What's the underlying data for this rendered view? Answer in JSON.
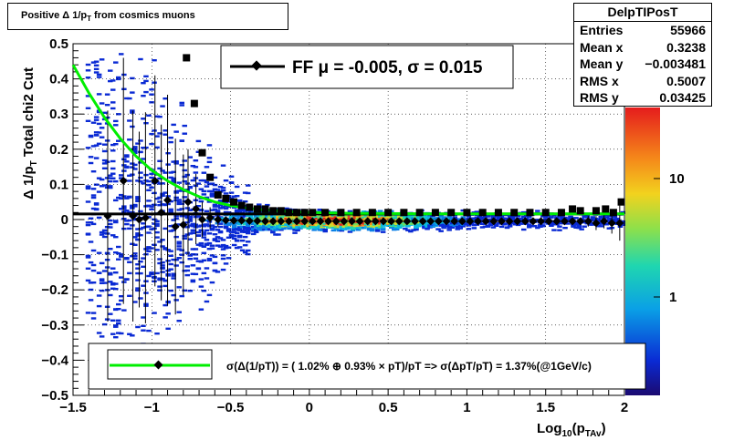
{
  "title": {
    "main": "Positive Δ 1/p",
    "sub": "T",
    "rest": " from cosmics muons"
  },
  "stats": {
    "name": "DelpTIPosT",
    "rows": [
      {
        "label": "Entries",
        "value": "55966"
      },
      {
        "label": "Mean x",
        "value": "0.3238"
      },
      {
        "label": "Mean y",
        "value": "−0.003481"
      },
      {
        "label": "RMS x",
        "value": "0.5007"
      },
      {
        "label": "RMS y",
        "value": "0.03425"
      }
    ]
  },
  "fit_legend": "FF μ = -0.005, σ =   0.015",
  "resolution_legend": "σ(Δ(1/pT)) = ( 1.02% ⊕  0.93% × pT)/pT => σ(ΔpT/pT) =  1.37%(@1GeV/c)",
  "axes": {
    "xlabel_main": "Log",
    "xlabel_sub1": "10",
    "xlabel_mid": "(p",
    "xlabel_sub2": "TAv",
    "xlabel_end": ")",
    "ylabel_main": "Δ 1/p",
    "ylabel_sub": "T",
    "ylabel_rest": "  Total chi2 Cut",
    "x_ticks": [
      "−1.5",
      "−1",
      "−0.5",
      "0",
      "0.5",
      "1",
      "1.5",
      "2"
    ],
    "y_ticks": [
      "0.5",
      "0.4",
      "0.3",
      "0.2",
      "0.1",
      "0",
      "−0.1",
      "−0.2",
      "−0.3",
      "−0.4",
      "−0.5"
    ],
    "z_ticks": [
      "10",
      "1"
    ]
  },
  "colors": {
    "fit_curve": "#00ee00",
    "markers": "#000000"
  },
  "chart_data": {
    "type": "scatter",
    "xlim": [
      -1.5,
      2.0
    ],
    "ylim": [
      -0.5,
      0.5
    ],
    "grid": true,
    "log_z": true,
    "series": [
      {
        "marker": "diamond",
        "x": [
          -1.28,
          -1.18,
          -1.12,
          -1.08,
          -1.04,
          -0.98,
          -0.94,
          -0.9,
          -0.85,
          -0.8,
          -0.77,
          -0.72,
          -0.68,
          -0.63,
          -0.58,
          -0.53,
          -0.48,
          -0.43,
          -0.38,
          -0.33,
          -0.28,
          -0.23,
          -0.18,
          -0.13,
          -0.08,
          -0.03,
          0.02,
          0.07,
          0.12,
          0.17,
          0.22,
          0.27,
          0.32,
          0.37,
          0.42,
          0.47,
          0.52,
          0.57,
          0.62,
          0.67,
          0.72,
          0.77,
          0.82,
          0.87,
          0.92,
          0.97,
          1.02,
          1.07,
          1.12,
          1.17,
          1.22,
          1.27,
          1.32,
          1.37,
          1.42,
          1.47,
          1.52,
          1.57,
          1.62,
          1.67,
          1.72,
          1.77,
          1.82,
          1.87,
          1.92,
          1.97
        ],
        "y": [
          0.01,
          0.11,
          0.01,
          0.0,
          0.005,
          0.11,
          0.02,
          0.055,
          -0.02,
          -0.015,
          0.05,
          0.03,
          0.0,
          0.005,
          0.0,
          -0.002,
          -0.003,
          -0.003,
          -0.004,
          -0.004,
          -0.005,
          -0.005,
          -0.005,
          -0.005,
          -0.005,
          -0.005,
          -0.005,
          -0.005,
          -0.005,
          -0.005,
          -0.005,
          -0.005,
          -0.005,
          -0.005,
          -0.005,
          -0.005,
          -0.005,
          -0.005,
          -0.005,
          -0.005,
          -0.005,
          -0.005,
          -0.005,
          -0.005,
          -0.005,
          -0.005,
          -0.005,
          -0.005,
          -0.005,
          -0.005,
          -0.005,
          -0.005,
          -0.005,
          -0.005,
          -0.005,
          -0.005,
          -0.005,
          -0.005,
          -0.005,
          -0.005,
          -0.005,
          -0.005,
          -0.01,
          -0.005,
          -0.01,
          -0.01
        ],
        "yerr": [
          0.3,
          0.35,
          0.3,
          0.25,
          0.3,
          0.3,
          0.25,
          0.3,
          0.25,
          0.2,
          0.15,
          0.1,
          0.05,
          0.03,
          0.02,
          0.01,
          0.01,
          0.01,
          0.005,
          0.005,
          0.005,
          0.005,
          0.005,
          0.005,
          0.005,
          0.005,
          0.005,
          0.005,
          0.005,
          0.005,
          0.005,
          0.005,
          0.005,
          0.005,
          0.005,
          0.005,
          0.005,
          0.005,
          0.005,
          0.005,
          0.005,
          0.005,
          0.005,
          0.005,
          0.005,
          0.005,
          0.005,
          0.005,
          0.005,
          0.005,
          0.005,
          0.005,
          0.005,
          0.005,
          0.005,
          0.01,
          0.01,
          0.01,
          0.01,
          0.01,
          0.01,
          0.015,
          0.02,
          0.02,
          0.03,
          0.05
        ]
      },
      {
        "marker": "square",
        "x": [
          -0.78,
          -0.73,
          -0.68,
          -0.63,
          -0.58,
          -0.53,
          -0.48,
          -0.43,
          -0.38,
          -0.33,
          -0.28,
          -0.23,
          -0.18,
          -0.13,
          -0.08,
          -0.03,
          0.02,
          0.1,
          0.2,
          0.3,
          0.4,
          0.5,
          0.6,
          0.7,
          0.8,
          0.9,
          1.0,
          1.1,
          1.2,
          1.3,
          1.4,
          1.5,
          1.6,
          1.67,
          1.72,
          1.82,
          1.88,
          1.93,
          1.98
        ],
        "y": [
          0.46,
          0.33,
          0.19,
          0.12,
          0.07,
          0.06,
          0.05,
          0.04,
          0.035,
          0.03,
          0.03,
          0.025,
          0.025,
          0.02,
          0.02,
          0.02,
          0.02,
          0.02,
          0.02,
          0.02,
          0.02,
          0.02,
          0.02,
          0.02,
          0.02,
          0.02,
          0.02,
          0.02,
          0.02,
          0.02,
          0.02,
          0.02,
          0.02,
          0.03,
          0.025,
          0.025,
          0.03,
          0.02,
          0.05
        ]
      },
      {
        "name": "FF",
        "type": "line",
        "x": [
          -1.5,
          -1.4,
          -1.3,
          -1.2,
          -1.1,
          -1.0,
          -0.9,
          -0.8,
          -0.7,
          -0.6,
          -0.5,
          -0.4,
          -0.3,
          -0.2,
          -0.1,
          0.0,
          0.25,
          0.5,
          0.75,
          1.0,
          1.25,
          1.5,
          1.75,
          2.0
        ],
        "y": [
          0.44,
          0.36,
          0.29,
          0.23,
          0.18,
          0.14,
          0.11,
          0.085,
          0.065,
          0.05,
          0.04,
          0.033,
          0.028,
          0.025,
          0.022,
          0.02,
          0.018,
          0.017,
          0.016,
          0.016,
          0.016,
          0.016,
          0.016,
          0.016
        ]
      }
    ]
  }
}
